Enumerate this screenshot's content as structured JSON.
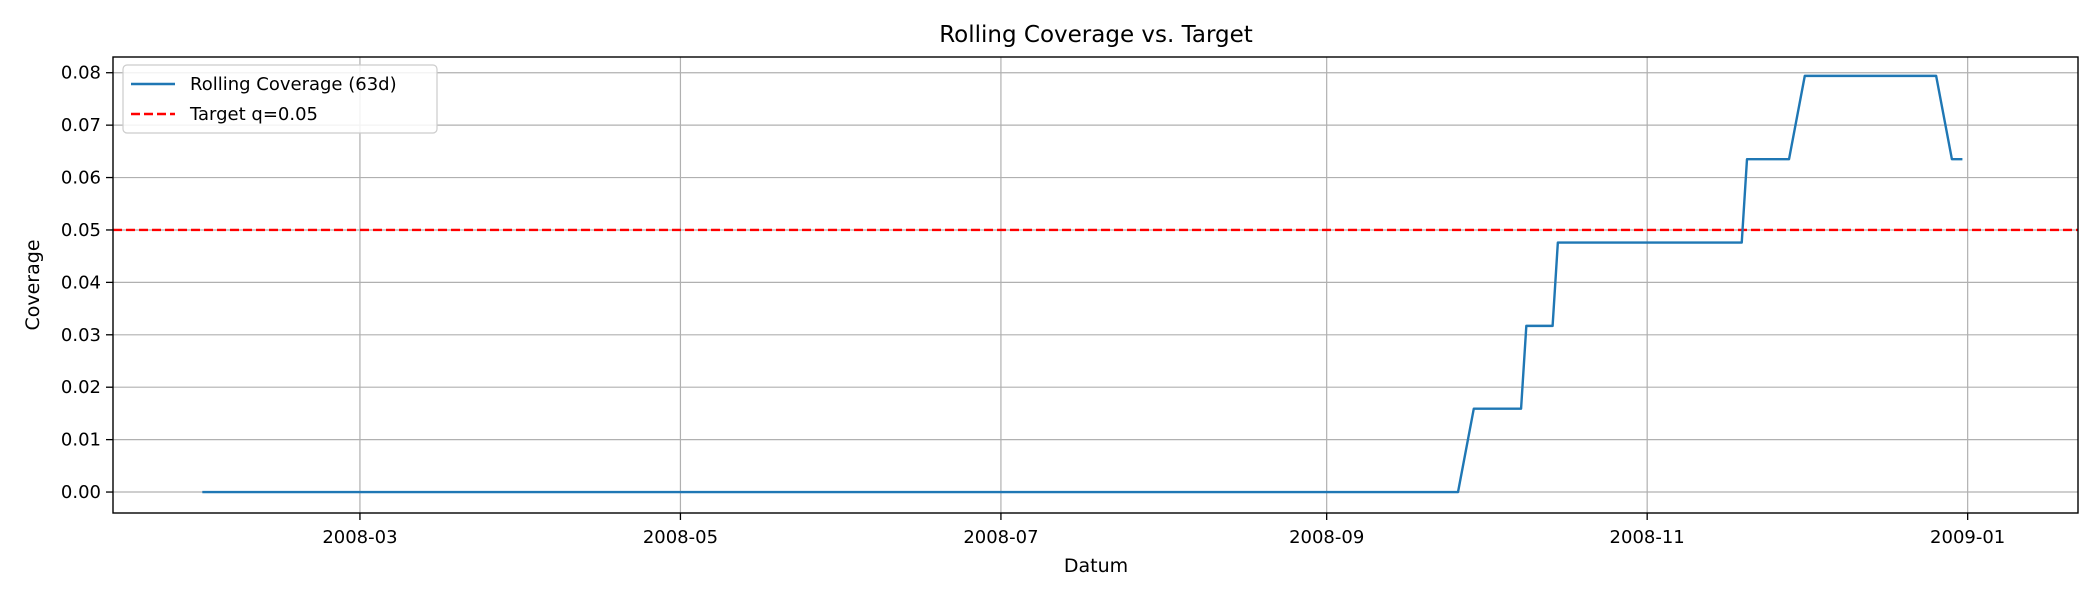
{
  "chart_data": {
    "type": "line",
    "title": "Rolling Coverage vs. Target",
    "xlabel": "Datum",
    "ylabel": "Coverage",
    "grid": true,
    "legend_position": "upper-left",
    "xlim": [
      "2008-01-14",
      "2009-01-22"
    ],
    "ylim": [
      -0.004,
      0.083
    ],
    "x_ticks": [
      "2008-03-01",
      "2008-05-01",
      "2008-07-01",
      "2008-09-01",
      "2008-11-01",
      "2009-01-01"
    ],
    "x_tick_labels": [
      "2008-03",
      "2008-05",
      "2008-07",
      "2008-09",
      "2008-11",
      "2009-01"
    ],
    "y_ticks": [
      0.0,
      0.01,
      0.02,
      0.03,
      0.04,
      0.05,
      0.06,
      0.07,
      0.08
    ],
    "y_tick_labels": [
      "0.00",
      "0.01",
      "0.02",
      "0.03",
      "0.04",
      "0.05",
      "0.06",
      "0.07",
      "0.08"
    ],
    "series": [
      {
        "name": "Rolling Coverage (63d)",
        "color": "#1f77b4",
        "style": "solid",
        "points": [
          {
            "x": "2008-01-31",
            "y": 0.0
          },
          {
            "x": "2008-09-26",
            "y": 0.0
          },
          {
            "x": "2008-09-29",
            "y": 0.0159
          },
          {
            "x": "2008-10-08",
            "y": 0.0159
          },
          {
            "x": "2008-10-09",
            "y": 0.0317
          },
          {
            "x": "2008-10-14",
            "y": 0.0317
          },
          {
            "x": "2008-10-15",
            "y": 0.0476
          },
          {
            "x": "2008-11-19",
            "y": 0.0476
          },
          {
            "x": "2008-11-20",
            "y": 0.0635
          },
          {
            "x": "2008-11-28",
            "y": 0.0635
          },
          {
            "x": "2008-12-01",
            "y": 0.0794
          },
          {
            "x": "2008-12-26",
            "y": 0.0794
          },
          {
            "x": "2008-12-29",
            "y": 0.0635
          },
          {
            "x": "2008-12-31",
            "y": 0.0635
          }
        ]
      },
      {
        "name": "Target q=0.05",
        "color": "#ff0000",
        "style": "dashed",
        "type": "hline",
        "y": 0.05
      }
    ]
  }
}
